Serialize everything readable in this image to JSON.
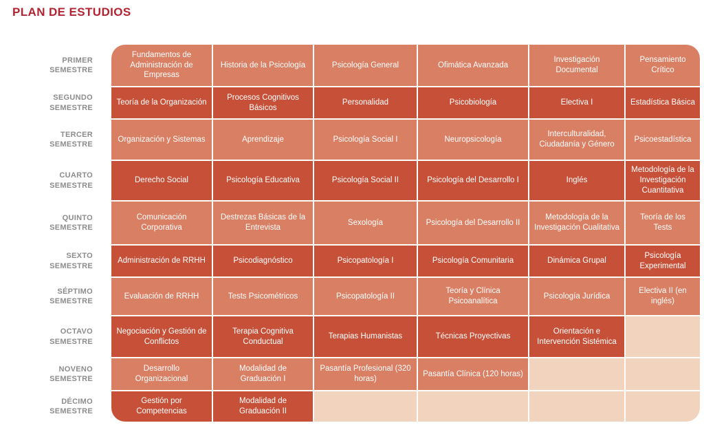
{
  "title": "PLAN DE ESTUDIOS",
  "colors": {
    "title": "#B12331",
    "label": "#8C8C8C",
    "light": "#D97F63",
    "dark": "#C65138",
    "empty": "#F2D3BE",
    "background": "#FFFFFF",
    "cell_text": "#FFFFFF"
  },
  "semesters": [
    {
      "label1": "PRIMER",
      "label2": "SEMESTRE",
      "tone": "light",
      "courses": [
        "Fundamentos de Administración de Empresas",
        "Historia de la Psicología",
        "Psicología General",
        "Ofimática Avanzada",
        "Investigación Documental",
        "Pensamiento Crítico"
      ]
    },
    {
      "label1": "SEGUNDO",
      "label2": "SEMESTRE",
      "tone": "dark",
      "courses": [
        "Teoría de la Organización",
        "Procesos Cognitivos Básicos",
        "Personalidad",
        "Psicobiología",
        "Electiva I",
        "Estadística Básica"
      ]
    },
    {
      "label1": "TERCER",
      "label2": "SEMESTRE",
      "tone": "light",
      "courses": [
        "Organización y Sistemas",
        "Aprendizaje",
        "Psicología Social I",
        "Neuropsicología",
        "Interculturalidad, Ciudadanía y Género",
        "Psicoestadística"
      ]
    },
    {
      "label1": "CUARTO",
      "label2": "SEMESTRE",
      "tone": "dark",
      "courses": [
        "Derecho Social",
        "Psicología Educativa",
        "Psicología Social II",
        "Psicología del Desarrollo I",
        "Inglés",
        "Metodología de la Investigación Cuantitativa"
      ]
    },
    {
      "label1": "QUINTO",
      "label2": "SEMESTRE",
      "tone": "light",
      "courses": [
        "Comunicación Corporativa",
        "Destrezas Básicas de la Entrevista",
        "Sexología",
        "Psicología del Desarrollo II",
        "Metodología de la Investigación Cualitativa",
        "Teoría de los Tests"
      ]
    },
    {
      "label1": "SEXTO",
      "label2": "SEMESTRE",
      "tone": "dark",
      "courses": [
        "Administración de RRHH",
        "Psicodiagnóstico",
        "Psicopatología I",
        "Psicología Comunitaria",
        "Dinámica Grupal",
        "Psicología Experimental"
      ]
    },
    {
      "label1": "SÉPTIMO",
      "label2": "SEMESTRE",
      "tone": "light",
      "courses": [
        "Evaluación de RRHH",
        "Tests Psicométricos",
        "Psicopatología II",
        "Teoría y Clínica Psicoanalítica",
        "Psicología Jurídica",
        "Electiva II (en inglés)"
      ]
    },
    {
      "label1": "OCTAVO",
      "label2": "SEMESTRE",
      "tone": "dark",
      "courses": [
        "Negociación y Gestión de Conflictos",
        "Terapia Cognitiva Conductual",
        "Terapias Humanistas",
        "Técnicas Proyectivas",
        "Orientación e Intervención Sistémica",
        ""
      ]
    },
    {
      "label1": "NOVENO",
      "label2": "SEMESTRE",
      "tone": "light",
      "courses": [
        "Desarrollo Organizacional",
        "Modalidad de Graduación I",
        "Pasantía Profesional (320 horas)",
        "Pasantía Clínica (120 horas)",
        "",
        ""
      ]
    },
    {
      "label1": "DÉCIMO",
      "label2": "SEMESTRE",
      "tone": "dark",
      "courses": [
        "Gestión por Competencias",
        "Modalidad de Graduación II",
        "",
        "",
        "",
        ""
      ]
    }
  ]
}
